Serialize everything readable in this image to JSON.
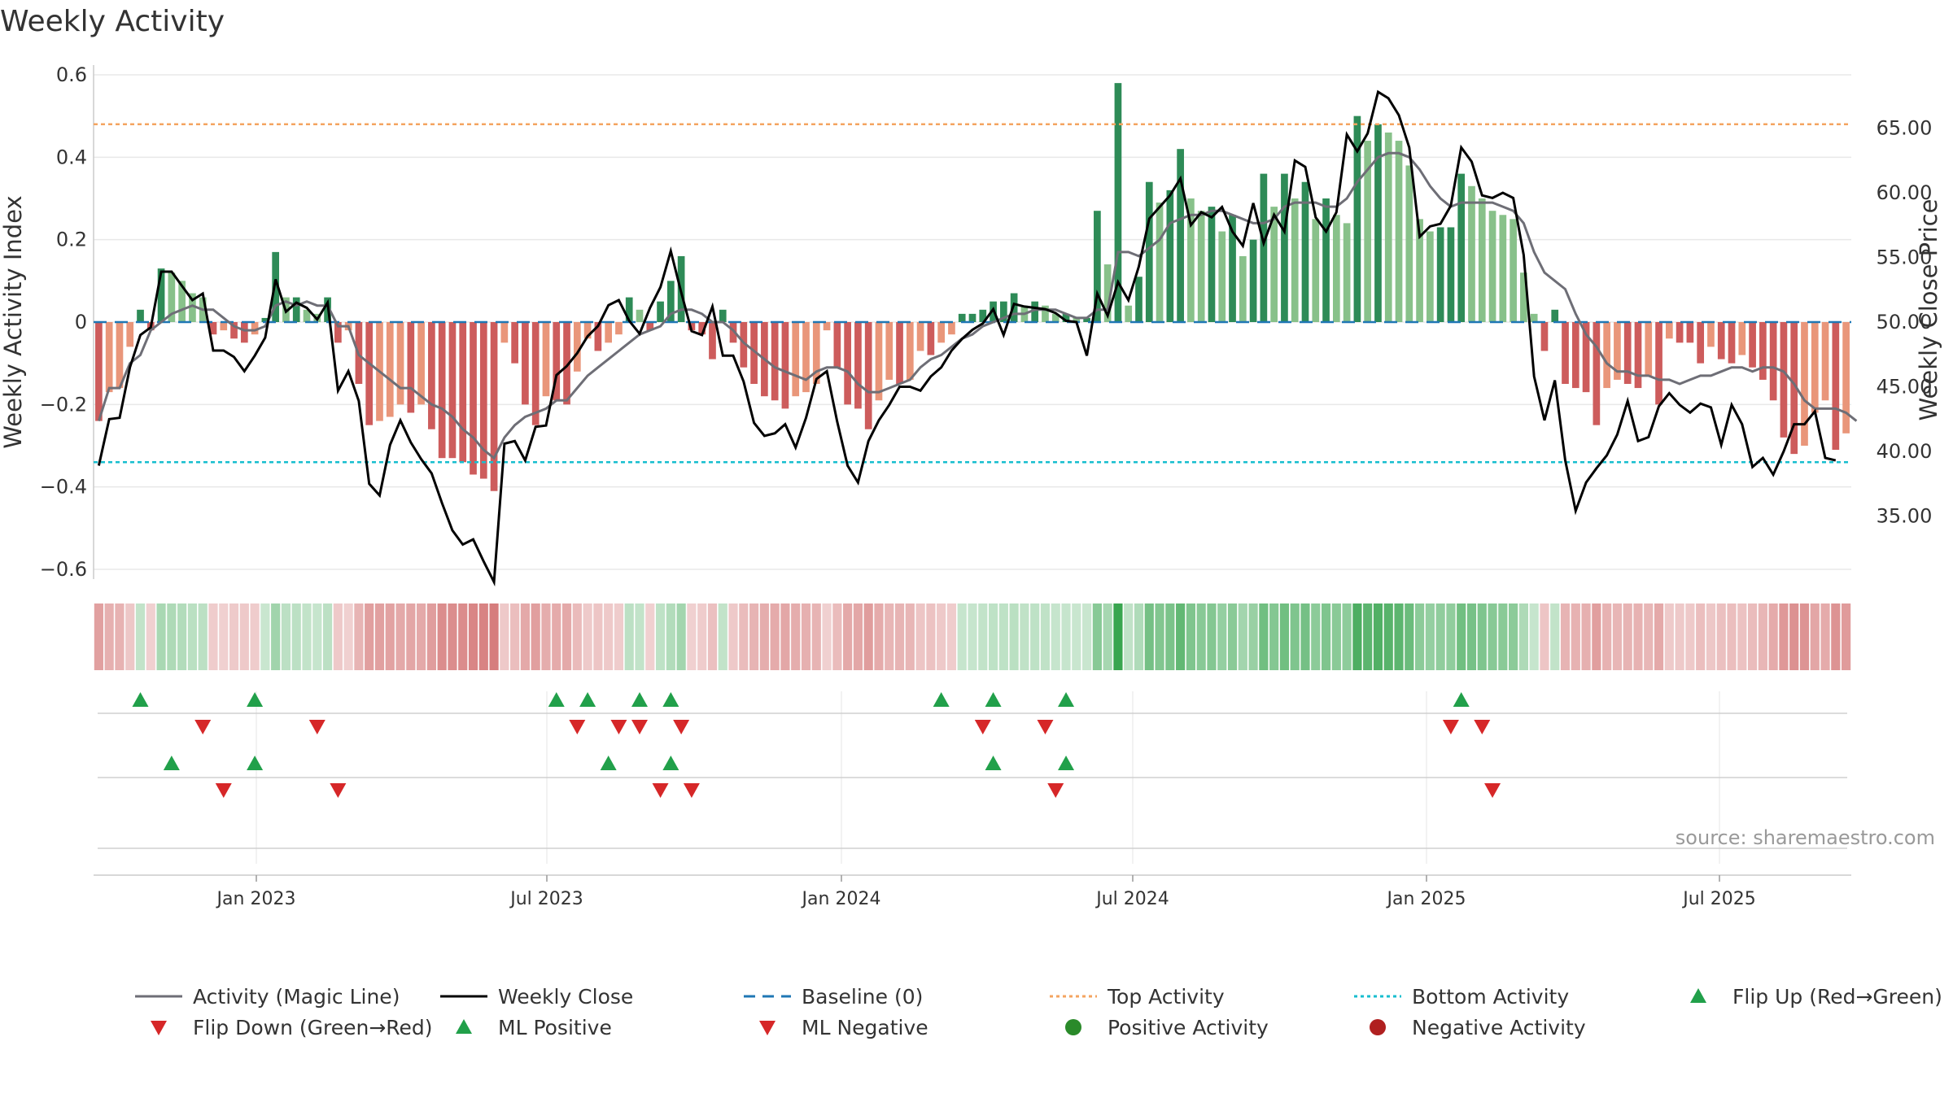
{
  "chart_data": {
    "type": "bar",
    "title": "Weekly Activity",
    "ylabel": "Weekly Activity Index",
    "y2label": "Weekly Close Price",
    "ylim": [
      -0.6,
      0.6
    ],
    "y2lim": [
      30,
      68
    ],
    "yticks": [
      "0.6",
      "0.4",
      "0.2",
      "0",
      "−0.2",
      "−0.4",
      "−0.6"
    ],
    "y2ticks": [
      "65.00",
      "60.00",
      "55.00",
      "50.00",
      "45.00",
      "40.00",
      "35.00"
    ],
    "xtick_labels": [
      "Jan 2023",
      "Jul 2023",
      "Jan 2024",
      "Jul 2024",
      "Jan 2025",
      "Jul 2025"
    ],
    "top_activity": 0.48,
    "bottom_activity": -0.34,
    "source": "source: sharemaestro.com",
    "colors": {
      "pos_dark": "#2e8b57",
      "pos_light": "#88c18a",
      "neg_dark": "#cd5c5c",
      "neg_light": "#e9967a",
      "magic_line": "#6e6e76",
      "close": "#000000",
      "baseline": "#1f77b4",
      "top": "#f4a460",
      "bottom": "#17becf",
      "up_marker": "#21a04a",
      "down_marker": "#d62728"
    },
    "activity": [
      -0.24,
      -0.17,
      -0.16,
      -0.06,
      0.03,
      -0.02,
      0.13,
      0.12,
      0.1,
      0.07,
      0.06,
      -0.03,
      -0.02,
      -0.04,
      -0.05,
      -0.03,
      0.01,
      0.17,
      0.06,
      0.06,
      0.03,
      0.02,
      0.06,
      -0.05,
      -0.02,
      -0.15,
      -0.25,
      -0.24,
      -0.23,
      -0.2,
      -0.22,
      -0.2,
      -0.26,
      -0.33,
      -0.33,
      -0.34,
      -0.37,
      -0.38,
      -0.41,
      -0.05,
      -0.1,
      -0.2,
      -0.25,
      -0.18,
      -0.19,
      -0.2,
      -0.12,
      -0.04,
      -0.07,
      -0.05,
      -0.03,
      0.06,
      0.03,
      -0.02,
      0.05,
      0.1,
      0.16,
      -0.02,
      -0.03,
      -0.09,
      0.03,
      -0.05,
      -0.11,
      -0.15,
      -0.18,
      -0.19,
      -0.21,
      -0.18,
      -0.17,
      -0.15,
      -0.02,
      -0.11,
      -0.2,
      -0.21,
      -0.26,
      -0.19,
      -0.14,
      -0.15,
      -0.14,
      -0.07,
      -0.08,
      -0.05,
      -0.03,
      0.02,
      0.02,
      0.03,
      0.05,
      0.05,
      0.07,
      0.04,
      0.05,
      0.04,
      0.02,
      0.02,
      0.01,
      0.01,
      0.27,
      0.14,
      0.58,
      0.04,
      0.11,
      0.34,
      0.29,
      0.32,
      0.42,
      0.3,
      0.27,
      0.28,
      0.22,
      0.26,
      0.16,
      0.2,
      0.36,
      0.28,
      0.36,
      0.3,
      0.34,
      0.25,
      0.3,
      0.26,
      0.24,
      0.5,
      0.44,
      0.48,
      0.46,
      0.44,
      0.38,
      0.25,
      0.22,
      0.23,
      0.23,
      0.36,
      0.33,
      0.3,
      0.27,
      0.26,
      0.25,
      0.12,
      0.02,
      -0.07,
      0.03,
      -0.15,
      -0.16,
      -0.17,
      -0.25,
      -0.16,
      -0.14,
      -0.15,
      -0.16,
      -0.13,
      -0.2,
      -0.04,
      -0.05,
      -0.05,
      -0.1,
      -0.06,
      -0.09,
      -0.1,
      -0.08,
      -0.11,
      -0.14,
      -0.19,
      -0.28,
      -0.32,
      -0.3,
      -0.22,
      -0.19,
      -0.31,
      -0.27
    ],
    "magic_line": [
      -0.24,
      -0.16,
      -0.16,
      -0.1,
      -0.08,
      -0.02,
      0.0,
      0.02,
      0.03,
      0.04,
      0.03,
      0.03,
      0.01,
      -0.01,
      -0.02,
      -0.02,
      -0.01,
      0.04,
      0.05,
      0.04,
      0.05,
      0.04,
      0.04,
      -0.01,
      -0.01,
      -0.08,
      -0.1,
      -0.12,
      -0.14,
      -0.16,
      -0.16,
      -0.18,
      -0.2,
      -0.21,
      -0.23,
      -0.26,
      -0.28,
      -0.31,
      -0.33,
      -0.28,
      -0.25,
      -0.23,
      -0.22,
      -0.21,
      -0.19,
      -0.19,
      -0.16,
      -0.13,
      -0.11,
      -0.09,
      -0.07,
      -0.05,
      -0.03,
      -0.02,
      -0.01,
      0.02,
      0.03,
      0.03,
      0.02,
      0.0,
      0.0,
      -0.02,
      -0.05,
      -0.07,
      -0.09,
      -0.11,
      -0.12,
      -0.13,
      -0.14,
      -0.12,
      -0.11,
      -0.11,
      -0.12,
      -0.15,
      -0.17,
      -0.17,
      -0.16,
      -0.15,
      -0.14,
      -0.11,
      -0.09,
      -0.08,
      -0.06,
      -0.04,
      -0.03,
      -0.01,
      0.0,
      0.01,
      0.02,
      0.02,
      0.03,
      0.03,
      0.03,
      0.02,
      0.01,
      0.01,
      0.03,
      0.03,
      0.17,
      0.17,
      0.16,
      0.18,
      0.2,
      0.24,
      0.25,
      0.26,
      0.26,
      0.27,
      0.27,
      0.26,
      0.25,
      0.24,
      0.24,
      0.25,
      0.28,
      0.29,
      0.29,
      0.29,
      0.28,
      0.28,
      0.3,
      0.34,
      0.37,
      0.4,
      0.41,
      0.41,
      0.4,
      0.37,
      0.33,
      0.3,
      0.28,
      0.29,
      0.29,
      0.29,
      0.29,
      0.28,
      0.27,
      0.24,
      0.17,
      0.12,
      0.1,
      0.08,
      0.02,
      -0.03,
      -0.06,
      -0.1,
      -0.12,
      -0.12,
      -0.13,
      -0.13,
      -0.14,
      -0.14,
      -0.15,
      -0.14,
      -0.13,
      -0.13,
      -0.12,
      -0.11,
      -0.11,
      -0.12,
      -0.11,
      -0.11,
      -0.12,
      -0.15,
      -0.19,
      -0.21,
      -0.21,
      -0.21,
      -0.22,
      -0.24
    ],
    "weekly_close": [
      38.9,
      42.5,
      42.6,
      46.5,
      49.0,
      49.6,
      53.9,
      53.9,
      52.8,
      51.7,
      52.2,
      47.8,
      47.8,
      47.3,
      46.2,
      47.4,
      48.8,
      53.3,
      50.8,
      51.5,
      51.1,
      50.2,
      51.5,
      44.7,
      46.2,
      43.9,
      37.5,
      36.6,
      40.5,
      42.4,
      40.7,
      39.4,
      38.3,
      36.0,
      33.9,
      32.8,
      33.2,
      31.5,
      29.9,
      40.6,
      40.8,
      39.3,
      41.9,
      42.0,
      45.9,
      46.6,
      47.6,
      48.9,
      49.7,
      51.3,
      51.7,
      50.1,
      49.1,
      51.1,
      52.7,
      55.5,
      52.3,
      49.3,
      49.0,
      51.2,
      47.4,
      47.4,
      45.4,
      42.2,
      41.2,
      41.4,
      42.1,
      40.3,
      42.6,
      45.6,
      46.2,
      42.3,
      38.9,
      37.6,
      40.8,
      42.4,
      43.6,
      45.0,
      45.0,
      44.7,
      45.8,
      46.5,
      47.8,
      48.7,
      49.4,
      49.9,
      51.0,
      49.0,
      51.4,
      51.2,
      51.1,
      51.0,
      50.7,
      50.1,
      50.0,
      47.4,
      52.2,
      50.5,
      53.1,
      51.7,
      54.3,
      58.0,
      58.9,
      59.8,
      61.1,
      57.5,
      58.5,
      58.1,
      58.9,
      57.0,
      55.9,
      59.2,
      56.1,
      58.3,
      57.0,
      62.5,
      62.0,
      58.1,
      57.0,
      58.5,
      64.5,
      63.2,
      64.6,
      67.8,
      67.3,
      66.0,
      63.5,
      56.6,
      57.4,
      57.6,
      59.0,
      63.5,
      62.4,
      59.8,
      59.6,
      60.0,
      59.6,
      55.2,
      45.8,
      42.4,
      45.5,
      39.3,
      35.4,
      37.6,
      38.7,
      39.7,
      41.3,
      43.9,
      40.8,
      41.1,
      43.5,
      44.5,
      43.6,
      43.0,
      43.7,
      43.4,
      40.5,
      43.6,
      42.1,
      38.8,
      39.5,
      38.2,
      40.0,
      42.1,
      42.1,
      43.1,
      39.5,
      39.3
    ],
    "flip_up_idx": [
      4,
      15,
      44,
      47,
      52,
      55,
      81,
      86,
      93,
      131
    ],
    "flip_down_idx": [
      10,
      21,
      46,
      50,
      52,
      56,
      85,
      91,
      130,
      133
    ],
    "ml_pos_idx": [
      7,
      15,
      49,
      55,
      86,
      93
    ],
    "ml_neg_idx": [
      12,
      23,
      54,
      57,
      92,
      134
    ],
    "legend": [
      "Activity (Magic Line)",
      "Weekly Close",
      "Baseline (0)",
      "Top Activity",
      "Bottom Activity",
      "Flip Up (Red→Green)",
      "Flip Down (Green→Red)",
      "ML Positive",
      "ML Negative",
      "Positive Activity",
      "Negative Activity"
    ]
  }
}
